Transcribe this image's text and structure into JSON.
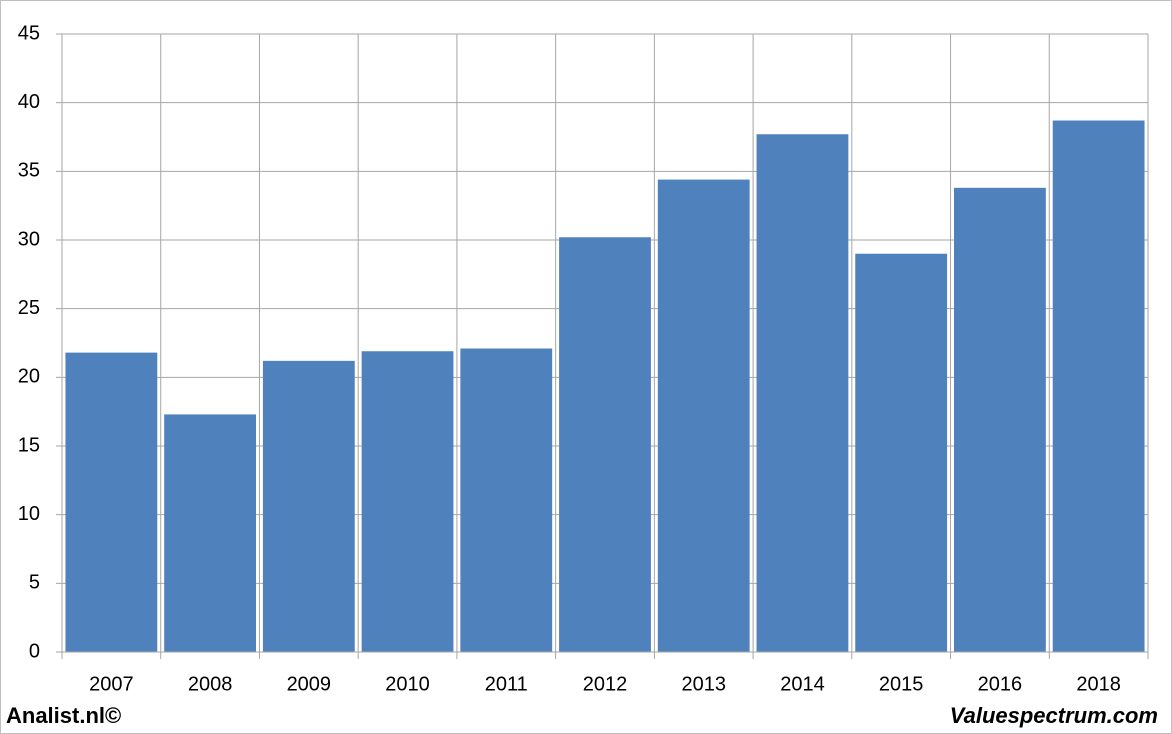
{
  "chart_data": {
    "type": "bar",
    "categories": [
      "2007",
      "2008",
      "2009",
      "2010",
      "2011",
      "2012",
      "2013",
      "2014",
      "2015",
      "2016",
      "2018"
    ],
    "values": [
      21.8,
      17.3,
      21.2,
      21.9,
      22.1,
      30.2,
      34.4,
      37.7,
      29.0,
      33.8,
      38.7
    ],
    "color": "#4f81bd",
    "ylim": [
      0,
      45
    ],
    "yticks": [
      0,
      5,
      10,
      15,
      20,
      25,
      30,
      35,
      40,
      45
    ],
    "grid": true,
    "footer_left": "Analist.nl©",
    "footer_right": "Valuespectrum.com"
  }
}
